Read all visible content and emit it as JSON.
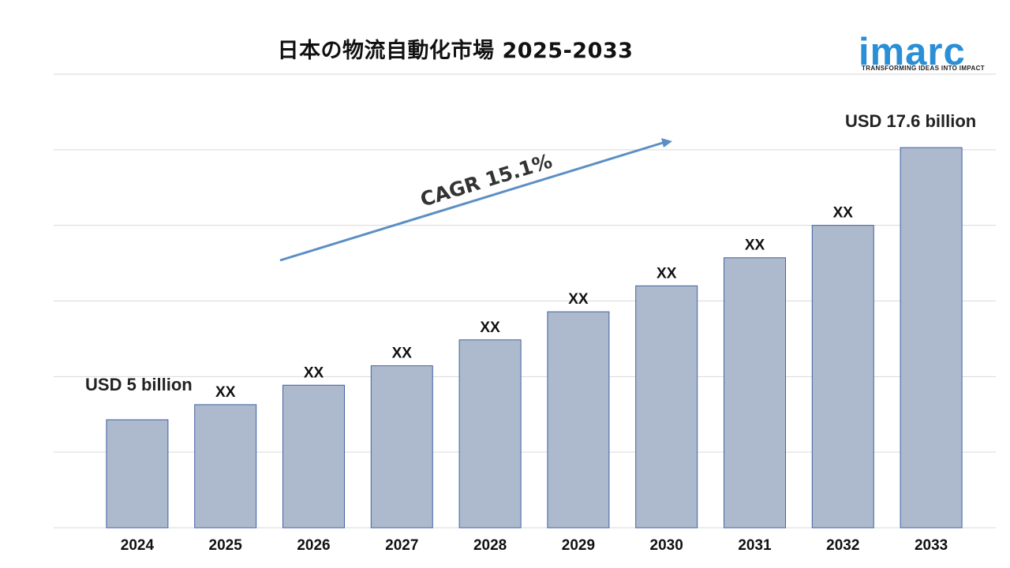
{
  "header": {
    "title": "日本の物流自動化市場 2025-2033"
  },
  "logo": {
    "word": "imarc",
    "tagline": "TRANSFORMING IDEAS INTO IMPACT"
  },
  "colors": {
    "bar_fill": "#adb9cc",
    "bar_stroke": "#3f62a4",
    "arrow": "#5b8fc4",
    "logo": "#2a8fd6"
  },
  "chart_data": {
    "type": "bar",
    "title": "日本の物流自動化市場 2025-2033",
    "xlabel": "",
    "ylabel": "",
    "grid": true,
    "ylim": [
      0,
      21
    ],
    "categories": [
      "2024",
      "2025",
      "2026",
      "2027",
      "2028",
      "2029",
      "2030",
      "2031",
      "2032",
      "2033"
    ],
    "values": [
      5.0,
      5.7,
      6.6,
      7.5,
      8.7,
      10.0,
      11.2,
      12.5,
      14.0,
      17.6
    ],
    "data_labels": [
      "USD 5 billion",
      "XX",
      "XX",
      "XX",
      "XX",
      "XX",
      "XX",
      "XX",
      "XX",
      "USD 17.6 billion"
    ],
    "annotations": [
      {
        "text": "CAGR 15.1%"
      }
    ]
  }
}
